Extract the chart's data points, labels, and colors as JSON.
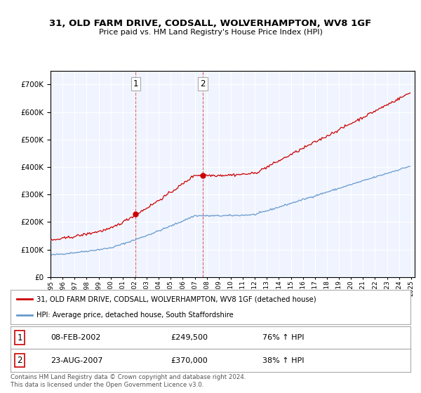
{
  "title": "31, OLD FARM DRIVE, CODSALL, WOLVERHAMPTON, WV8 1GF",
  "subtitle": "Price paid vs. HM Land Registry's House Price Index (HPI)",
  "red_line_color": "#cc0000",
  "blue_line_color": "#6699cc",
  "sale1_idx_months": 85,
  "sale1_price": 249500,
  "sale2_idx_months": 152,
  "sale2_price": 370000,
  "ylim_min": 0,
  "ylim_max": 750000,
  "start_year": 1995,
  "end_year": 2025,
  "footer": "Contains HM Land Registry data © Crown copyright and database right 2024.\nThis data is licensed under the Open Government Licence v3.0.",
  "legend_red": "31, OLD FARM DRIVE, CODSALL, WOLVERHAMPTON, WV8 1GF (detached house)",
  "legend_blue": "HPI: Average price, detached house, South Staffordshire",
  "background_color": "#ffffff",
  "plot_bg_color": "#f0f4ff"
}
